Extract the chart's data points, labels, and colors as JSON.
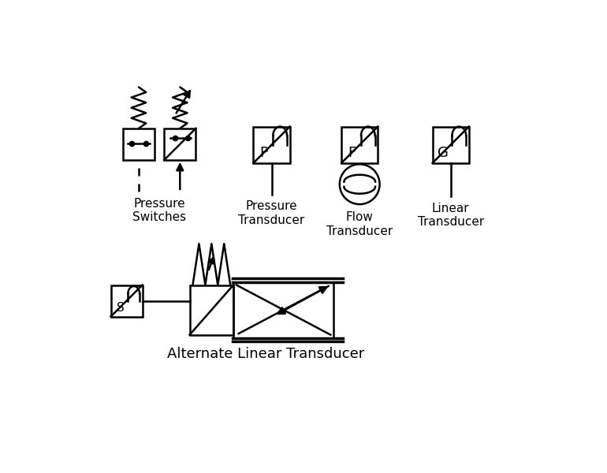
{
  "bg_color": "#ffffff",
  "line_color": "#000000",
  "line_width": 1.8,
  "fig_width": 7.7,
  "fig_height": 6.0,
  "labels": {
    "pressure_switches": "Pressure\nSwitches",
    "pressure_transducer": "Pressure\nTransducer",
    "flow_transducer": "Flow\nTransducer",
    "linear_transducer": "Linear\nTransducer",
    "alt_linear_transducer": "Alternate Linear Transducer"
  },
  "label_fontsize": 11,
  "alt_label_fontsize": 13
}
